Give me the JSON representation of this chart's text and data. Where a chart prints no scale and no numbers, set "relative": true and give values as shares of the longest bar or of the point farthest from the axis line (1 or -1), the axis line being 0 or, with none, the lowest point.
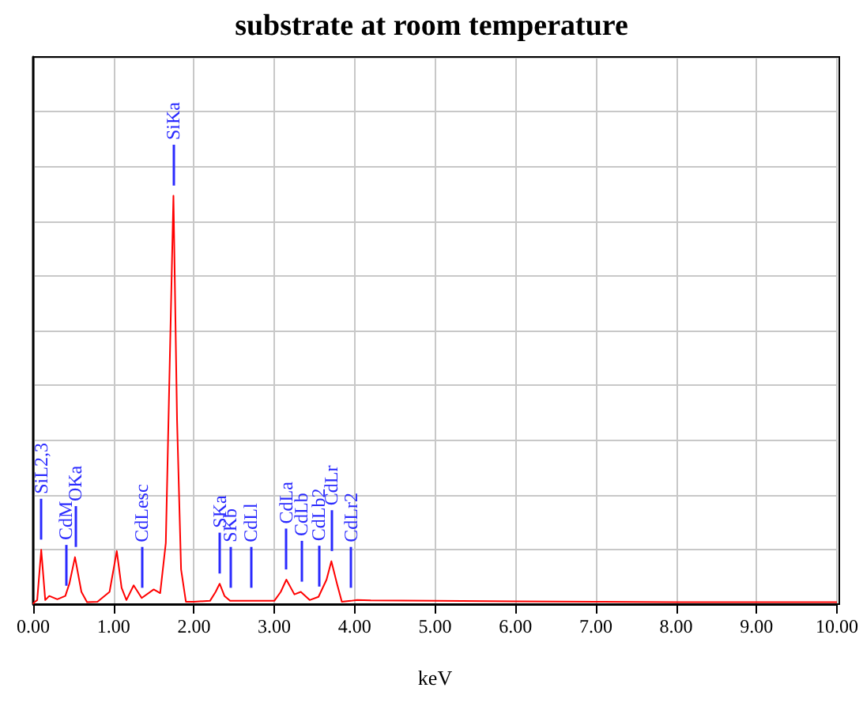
{
  "chart_data": {
    "type": "line",
    "title": "substrate at room temperature",
    "xlabel": "keV",
    "relative": true,
    "grid": true,
    "marker": "none",
    "line_style": "solid",
    "x": [
      0,
      0.01,
      0.05,
      0.1,
      0.15,
      0.2,
      0.3,
      0.4,
      0.45,
      0.52,
      0.6,
      0.67,
      0.8,
      0.95,
      1.04,
      1.1,
      1.16,
      1.25,
      1.35,
      1.5,
      1.58,
      1.65,
      1.7,
      1.745,
      1.79,
      1.84,
      1.9,
      2.0,
      2.2,
      2.27,
      2.32,
      2.38,
      2.45,
      2.7,
      3.0,
      3.08,
      3.15,
      3.25,
      3.33,
      3.44,
      3.55,
      3.65,
      3.71,
      3.78,
      3.84,
      3.95,
      4.03,
      4.2,
      5.0,
      6.0,
      7.0,
      8.0,
      9.0,
      10.0
    ],
    "series": [
      {
        "color": "#ff0000",
        "values": [
          0,
          0.004,
          0.01,
          0.133,
          0.01,
          0.02,
          0.012,
          0.02,
          0.05,
          0.115,
          0.03,
          0.005,
          0.006,
          0.03,
          0.13,
          0.04,
          0.01,
          0.046,
          0.015,
          0.036,
          0.027,
          0.15,
          0.6,
          1,
          0.45,
          0.085,
          0.006,
          0.006,
          0.008,
          0.03,
          0.05,
          0.02,
          0.008,
          0.008,
          0.008,
          0.03,
          0.06,
          0.024,
          0.03,
          0.01,
          0.018,
          0.06,
          0.105,
          0.05,
          0.006,
          0.008,
          0.01,
          0.009,
          0.008,
          0.007,
          0.006,
          0.005,
          0.005,
          0.005
        ]
      }
    ],
    "xlim": [
      0,
      10
    ],
    "xticks": [
      {
        "value": 0,
        "label": "0.00"
      },
      {
        "value": 1,
        "label": "1.00"
      },
      {
        "value": 2,
        "label": "2.00"
      },
      {
        "value": 3,
        "label": "3.00"
      },
      {
        "value": 4,
        "label": "4.00"
      },
      {
        "value": 5,
        "label": "5.00"
      },
      {
        "value": 6,
        "label": "6.00"
      },
      {
        "value": 7,
        "label": "7.00"
      },
      {
        "value": 8,
        "label": "8.00"
      },
      {
        "value": 9,
        "label": "9.00"
      },
      {
        "value": 10,
        "label": "10.00"
      }
    ],
    "annotations": [
      {
        "text": "SiL2,3",
        "x": 0.1,
        "y": 0.133
      },
      {
        "text": "CdM",
        "x": 0.4,
        "y": 0.02
      },
      {
        "text": "OKa",
        "x": 0.52,
        "y": 0.115
      },
      {
        "text": "CdLesc",
        "x": 1.35,
        "y": 0.015
      },
      {
        "text": "SiKa",
        "x": 1.745,
        "y": 1
      },
      {
        "text": "SKa",
        "x": 2.32,
        "y": 0.05
      },
      {
        "text": "SKb",
        "x": 2.45,
        "y": 0.008
      },
      {
        "text": "CdLl",
        "x": 2.7,
        "y": 0.008
      },
      {
        "text": "CdLa",
        "x": 3.15,
        "y": 0.06
      },
      {
        "text": "CdLb",
        "x": 3.33,
        "y": 0.03
      },
      {
        "text": "CdLb2",
        "x": 3.55,
        "y": 0.018
      },
      {
        "text": "CdLr",
        "x": 3.71,
        "y": 0.105
      },
      {
        "text": "CdLr2",
        "x": 3.95,
        "y": 0.008
      }
    ]
  }
}
